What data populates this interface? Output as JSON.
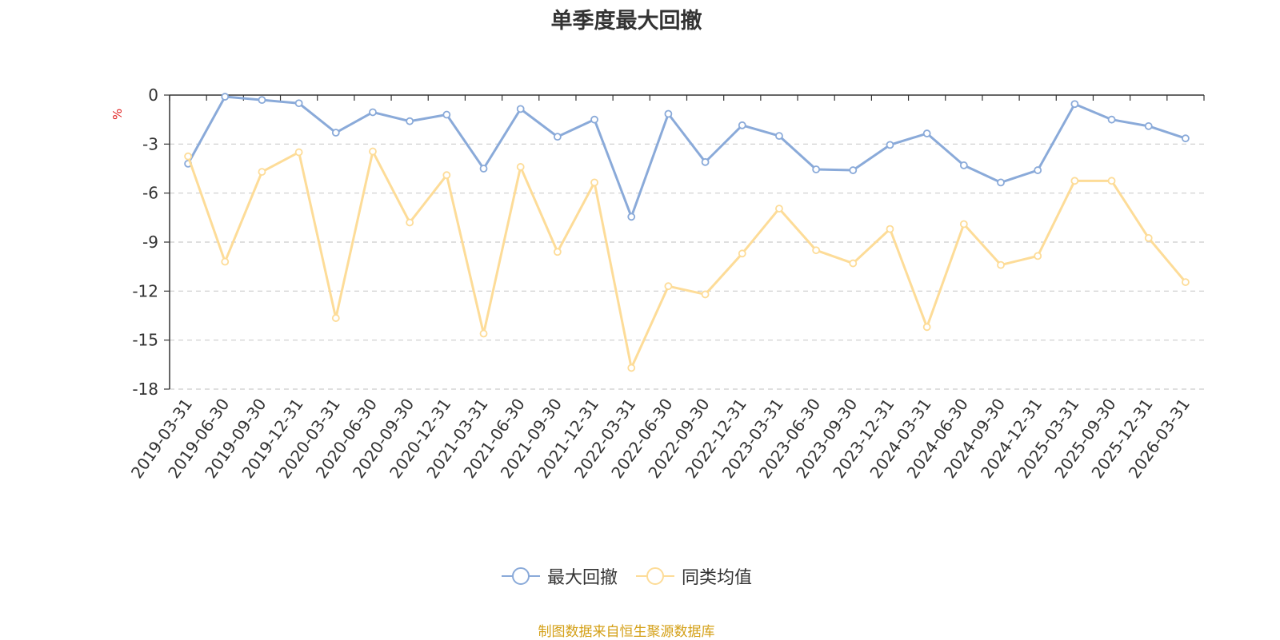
{
  "chart_data": {
    "type": "line",
    "title": "单季度最大回撤",
    "ylabel": "%",
    "ylim": [
      -18,
      0
    ],
    "yticks": [
      0,
      -3,
      -6,
      -9,
      -12,
      -15,
      -18
    ],
    "grid": true,
    "legend_position": "bottom",
    "categories": [
      "2019-03-31",
      "2019-06-30",
      "2019-09-30",
      "2019-12-31",
      "2020-03-31",
      "2020-06-30",
      "2020-09-30",
      "2020-12-31",
      "2021-03-31",
      "2021-06-30",
      "2021-09-30",
      "2021-12-31",
      "2022-03-31",
      "2022-06-30",
      "2022-09-30",
      "2022-12-31",
      "2023-03-31",
      "2023-06-30",
      "2023-09-30",
      "2023-12-31",
      "2024-03-31",
      "2024-06-30",
      "2024-09-30",
      "2024-12-31",
      "2025-03-31",
      "2025-09-30",
      "2025-12-31",
      "2026-03-31"
    ],
    "series": [
      {
        "name": "最大回撤",
        "color": "#8aaad9",
        "values": [
          -4.2,
          -0.1,
          -0.3,
          -0.5,
          -2.3,
          -1.05,
          -1.6,
          -1.2,
          -4.5,
          -0.85,
          -2.55,
          -1.5,
          -7.45,
          -1.15,
          -4.1,
          -1.85,
          -2.5,
          -4.55,
          -4.6,
          -3.05,
          -2.35,
          -4.3,
          -5.35,
          -4.6,
          -0.55,
          -1.5,
          -1.9,
          -2.65
        ]
      },
      {
        "name": "同类均值",
        "color": "#fddc98",
        "values": [
          -3.75,
          -10.2,
          -4.7,
          -3.5,
          -13.65,
          -3.45,
          -7.8,
          -4.9,
          -14.6,
          -4.4,
          -9.6,
          -5.35,
          -16.7,
          -11.7,
          -12.2,
          -9.7,
          -6.95,
          -9.5,
          -10.3,
          -8.2,
          -14.2,
          -7.9,
          -10.4,
          -9.85,
          -5.25,
          -5.25,
          -8.75,
          -11.45
        ]
      }
    ],
    "source": "制图数据来自恒生聚源数据库"
  }
}
